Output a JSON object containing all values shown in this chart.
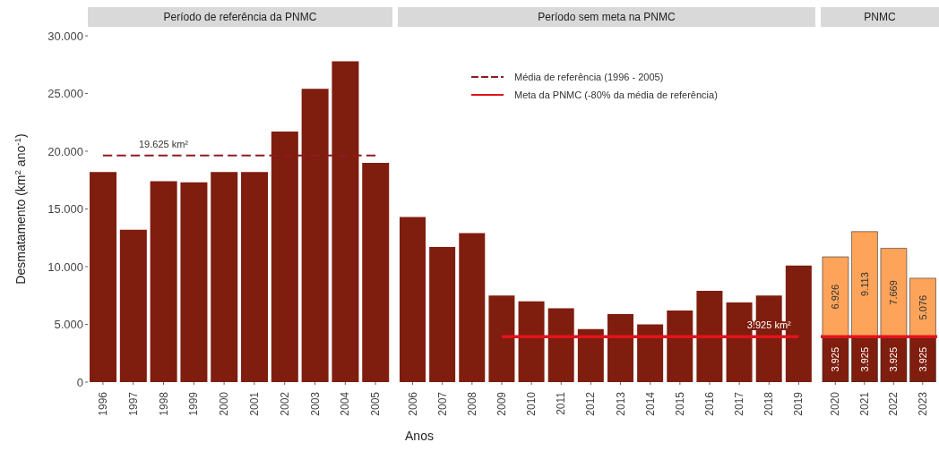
{
  "chart_data": [
    {
      "type": "bar",
      "title": "Período de referência da PNMC",
      "ylabel": "Desmatamento (km$^{2}$ ano$^{-1}$)",
      "categories": [
        "1996",
        "1997",
        "1998",
        "1999",
        "2000",
        "2001",
        "2002",
        "2003",
        "2004",
        "2005"
      ],
      "series": [
        {
          "color": "#7f1d0e",
          "values": [
            18200,
            13200,
            17400,
            17300,
            18200,
            18200,
            21700,
            25400,
            27800,
            19000
          ]
        },
        {
          "type": "line",
          "name": "Média de referência (1996 - 2005)",
          "color": "#8e1b22",
          "line_style": "dashed",
          "values": [
            19625,
            19625,
            19625,
            19625,
            19625,
            19625,
            19625,
            19625,
            19625,
            19625
          ]
        }
      ],
      "annotations": [
        {
          "text": "19.625 km²",
          "x": "1998",
          "y": 19625
        }
      ],
      "yticks": [
        {
          "value": 0,
          "label": "0"
        },
        {
          "value": 5000,
          "label": "5.000"
        },
        {
          "value": 10000,
          "label": "10.000"
        },
        {
          "value": 15000,
          "label": "15.000"
        },
        {
          "value": 20000,
          "label": "20.000"
        },
        {
          "value": 25000,
          "label": "25.000"
        },
        {
          "value": 30000,
          "label": "30.000"
        }
      ],
      "grid": false,
      "ylim": [
        0,
        30000
      ]
    },
    {
      "type": "bar",
      "title": "Período sem meta na PNMC",
      "xlabel": "Anos",
      "categories": [
        "2006",
        "2007",
        "2008",
        "2009",
        "2010",
        "2011",
        "2012",
        "2013",
        "2014",
        "2015",
        "2016",
        "2017",
        "2018",
        "2019"
      ],
      "series": [
        {
          "color": "#7f1d0e",
          "values": [
            14300,
            11700,
            12900,
            7500,
            7000,
            6400,
            4600,
            5900,
            5000,
            6200,
            7900,
            6900,
            7500,
            10100
          ]
        },
        {
          "type": "line",
          "name": "Meta da PNMC (-80% da média de referência)",
          "color": "#e0141e",
          "values": [
            null,
            null,
            null,
            3925,
            3925,
            3925,
            3925,
            3925,
            3925,
            3925,
            3925,
            3925,
            3925,
            3925
          ]
        }
      ],
      "annotations": [
        {
          "text": "3.925 km²",
          "x": "2018",
          "y": 3925
        }
      ],
      "ylim": [
        0,
        30000
      ],
      "tick_labels": "x",
      "legend": "top",
      "grid": false
    },
    {
      "type": "bar",
      "title": "PNMC",
      "categories": [
        "2020",
        "2021",
        "2022",
        "2023"
      ],
      "stacked": true,
      "series": [
        {
          "color": "#7f1d0e",
          "values": [
            3925,
            3925,
            3925,
            3925
          ],
          "value_labels": [
            "3.925",
            "3.925",
            "3.925",
            "3.925"
          ]
        },
        {
          "color": "#fda35a",
          "values": [
            6926,
            9113,
            7669,
            5076
          ],
          "value_labels": [
            "6.926",
            "9.113",
            "7.669",
            "5.076"
          ]
        }
      ],
      "ref_lines": [
        {
          "axis": "y",
          "value": 3925,
          "color": "#e0141e"
        }
      ],
      "ylim": [
        0,
        30000
      ],
      "tick_labels": "x",
      "grid": false
    }
  ]
}
